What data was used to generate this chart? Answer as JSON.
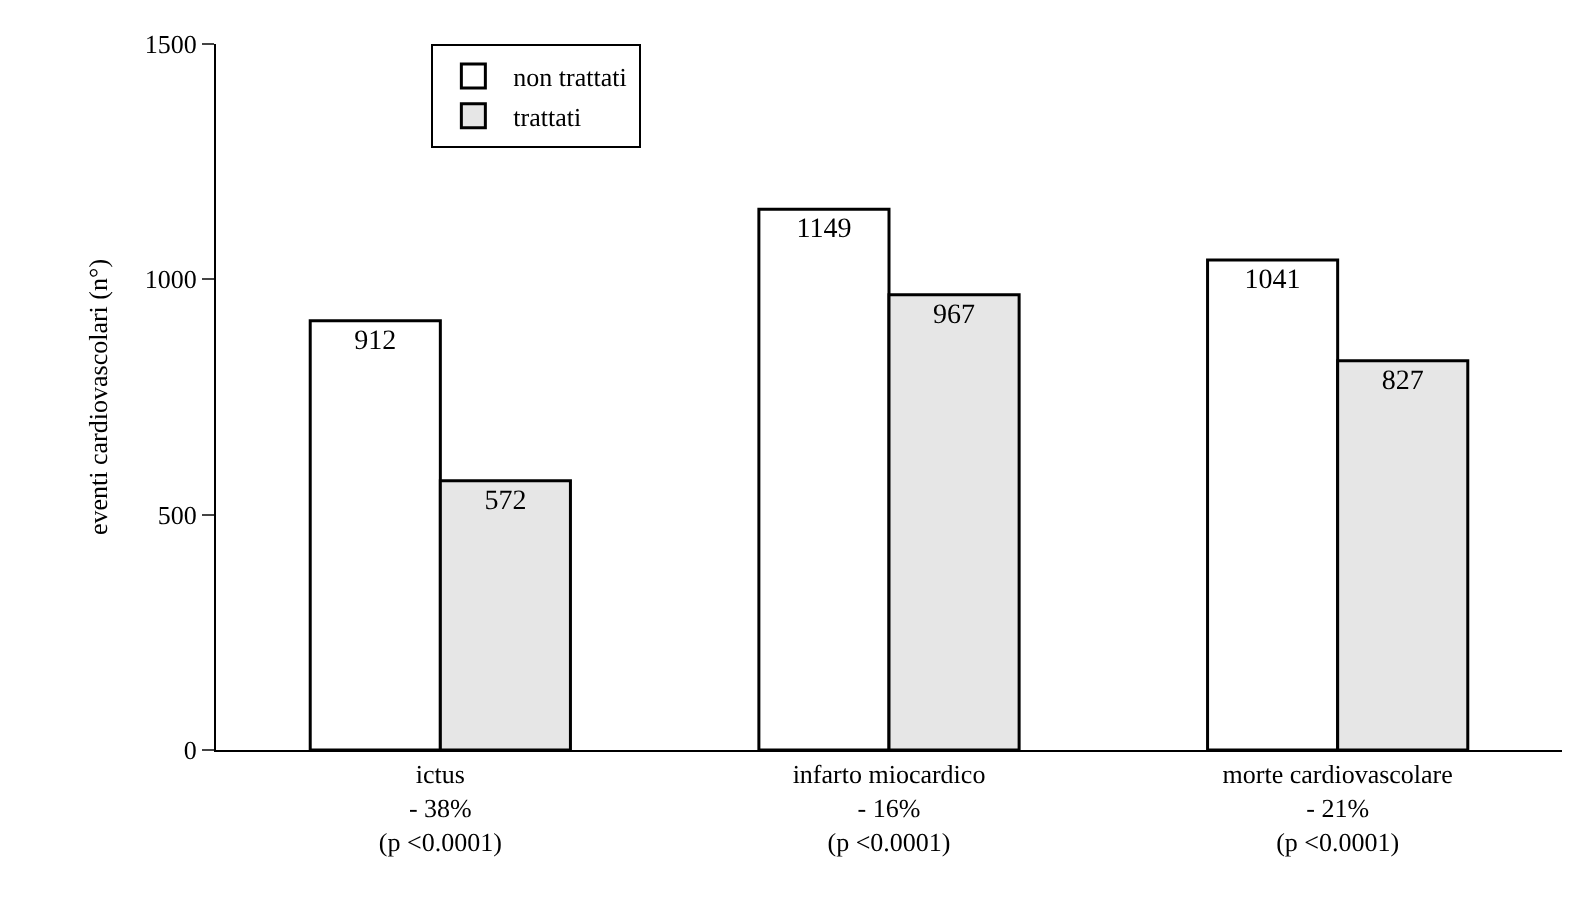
{
  "chart_data": {
    "type": "bar",
    "ylabel": "eventi cardiovascolari (n°)",
    "categories": [
      "ictus\n- 38%\n(p <0.0001)",
      "infarto miocardico\n- 16%\n(p <0.0001)",
      "morte cardiovascolare\n- 21%\n(p <0.0001)"
    ],
    "series": [
      {
        "name": "non trattati",
        "color": "#ffffff",
        "values": [
          912,
          1149,
          1041
        ]
      },
      {
        "name": "trattati",
        "color": "#e6e6e6",
        "values": [
          572,
          967,
          827
        ]
      }
    ],
    "ylim": [
      0,
      1500
    ],
    "yticks": [
      0,
      500,
      1000,
      1500
    ],
    "legend": "top left",
    "data_labels": true
  }
}
